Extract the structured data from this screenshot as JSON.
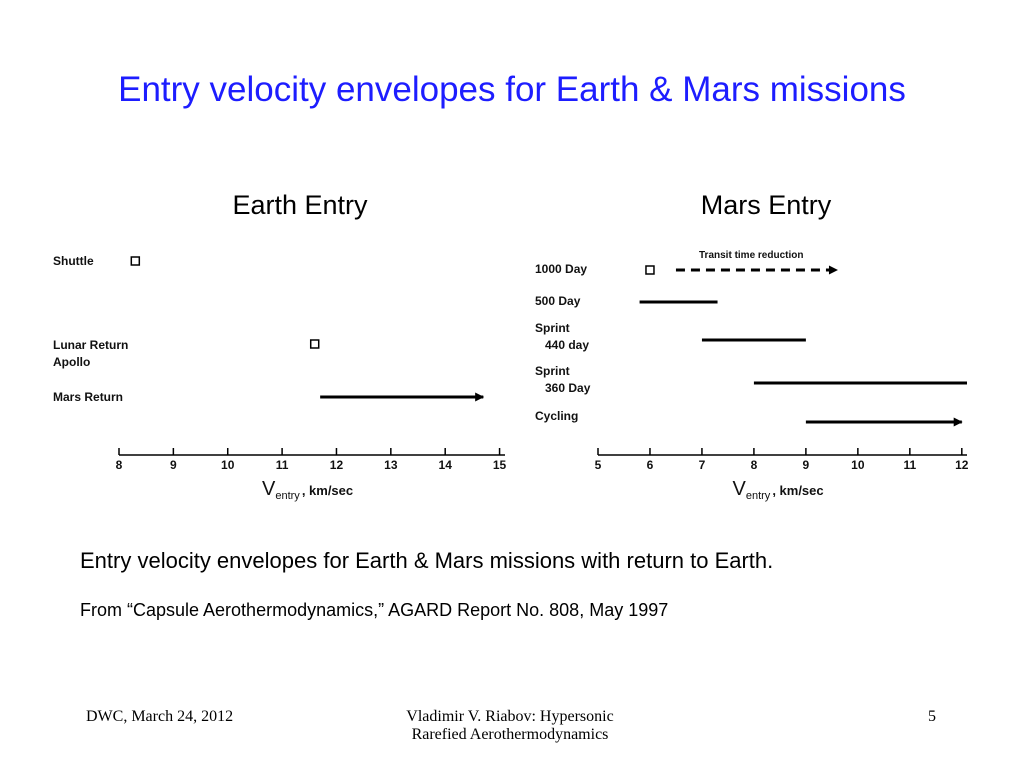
{
  "title": "Entry velocity envelopes for Earth & Mars missions",
  "caption": "Entry velocity envelopes for Earth & Mars missions with return to Earth.",
  "source": "From “Capsule Aerothermodynamics,” AGARD Report No. 808, May 1997",
  "footer": {
    "left": "DWC, March 24, 2012",
    "center": "Vladimir V. Riabov: Hypersonic\nRarefied Aerothermodynamics",
    "right": "5"
  },
  "chart_data": [
    {
      "type": "range",
      "title": "Earth Entry",
      "categories": [
        "Shuttle",
        "Lunar Return\nApollo",
        "Mars Return"
      ],
      "points": [
        8.3,
        11.6,
        null
      ],
      "ranges": [
        null,
        null,
        [
          11.7,
          14.7
        ]
      ],
      "range_styles": [
        null,
        null,
        "arrow"
      ],
      "xlim": [
        8,
        15.1
      ],
      "xticks": [
        8,
        9,
        10,
        11,
        12,
        13,
        14,
        15
      ],
      "xlabel": {
        "main": "V",
        "sub": "entry",
        "unit": ", km/sec"
      }
    },
    {
      "type": "range",
      "title": "Mars Entry",
      "categories": [
        "1000 Day",
        "500 Day",
        "Sprint\n440 day",
        "Sprint\n360 Day",
        "Cycling"
      ],
      "points": [
        6.0,
        null,
        null,
        null,
        null
      ],
      "ranges": [
        [
          6.5,
          9.6
        ],
        [
          5.8,
          7.3
        ],
        [
          7.0,
          9.0
        ],
        [
          8.0,
          12.1
        ],
        [
          9.0,
          12.0
        ]
      ],
      "range_styles": [
        "dashed-arrow",
        "line",
        "line",
        "line",
        "arrow"
      ],
      "annotation": "Transit time reduction",
      "xlim": [
        5,
        12.1
      ],
      "xticks": [
        5,
        6,
        7,
        8,
        9,
        10,
        11,
        12
      ],
      "xlabel": {
        "main": "V",
        "sub": "entry",
        "unit": ", km/sec"
      }
    }
  ]
}
